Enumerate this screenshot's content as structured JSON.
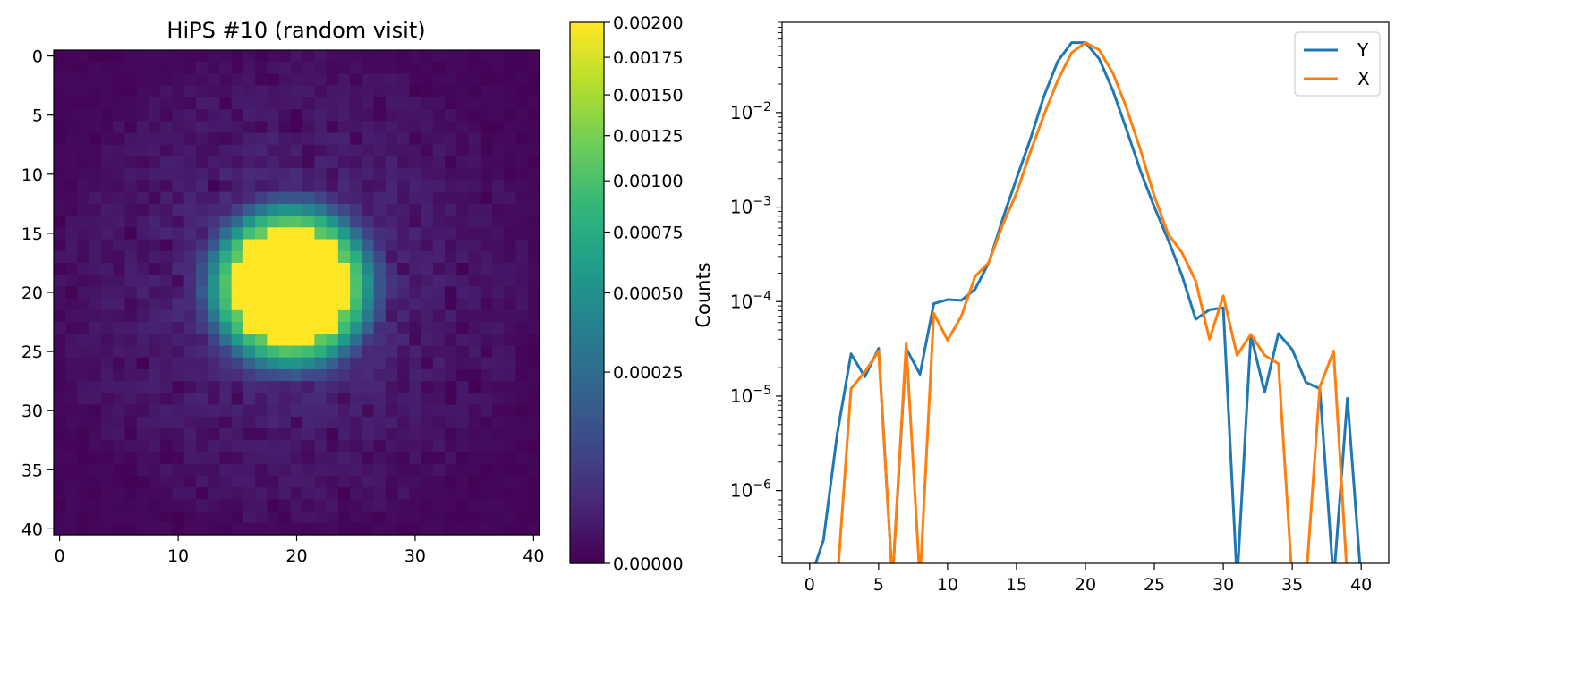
{
  "chart_data": [
    {
      "type": "heatmap",
      "title": "HiPS #10 (random visit)",
      "colormap": "viridis",
      "grid_size": 41,
      "xlim": [
        -0.5,
        40.5
      ],
      "ylim": [
        40.5,
        -0.5
      ],
      "x_ticks": [
        "0",
        "10",
        "20",
        "30",
        "40"
      ],
      "y_ticks": [
        "0",
        "5",
        "10",
        "15",
        "20",
        "25",
        "30",
        "35",
        "40"
      ],
      "center": [
        19.5,
        19.5
      ],
      "core_radius": 5,
      "colorbar": {
        "scale": "sqrt",
        "range": [
          0,
          0.002
        ],
        "ticks": [
          "0.00000",
          "0.00025",
          "0.00050",
          "0.00075",
          "0.00100",
          "0.00125",
          "0.00150",
          "0.00175",
          "0.00200"
        ]
      }
    },
    {
      "type": "line",
      "ylabel": "Counts",
      "yscale": "log",
      "xlim": [
        -2,
        42
      ],
      "ylim": [
        1.7e-07,
        0.09
      ],
      "x_ticks": [
        "0",
        "5",
        "10",
        "15",
        "20",
        "25",
        "30",
        "35",
        "40"
      ],
      "y_ticks": [
        "10^-6",
        "10^-5",
        "10^-4",
        "10^-3",
        "10^-2"
      ],
      "legend": "top-right",
      "x": [
        0,
        1,
        2,
        3,
        4,
        5,
        6,
        7,
        8,
        9,
        10,
        11,
        12,
        13,
        14,
        15,
        16,
        17,
        18,
        19,
        20,
        21,
        22,
        23,
        24,
        25,
        26,
        27,
        28,
        29,
        30,
        31,
        32,
        33,
        34,
        35,
        36,
        37,
        38,
        39,
        40
      ],
      "series": [
        {
          "name": "Y",
          "color": "#1f77b4",
          "values": [
            null,
            3e-07,
            4e-06,
            2.8e-05,
            1.6e-05,
            3.2e-05,
            null,
            3.2e-05,
            1.7e-05,
            9.5e-05,
            0.000105,
            0.000103,
            0.000135,
            0.00026,
            0.00075,
            0.002,
            0.0052,
            0.015,
            0.035,
            0.055,
            0.055,
            0.037,
            0.017,
            0.0065,
            0.0024,
            0.001,
            0.00045,
            0.00019,
            6.5e-05,
            8.2e-05,
            8.6e-05,
            null,
            4.4e-05,
            1.1e-05,
            4.6e-05,
            3.1e-05,
            1.4e-05,
            1.2e-05,
            null,
            9.5e-06,
            null
          ]
        },
        {
          "name": "X",
          "color": "#ff7f0e",
          "values": [
            null,
            null,
            null,
            1.2e-05,
            1.8e-05,
            3e-05,
            null,
            3.6e-05,
            null,
            7.5e-05,
            3.9e-05,
            7e-05,
            0.000185,
            0.00026,
            0.00065,
            0.0014,
            0.0038,
            0.0095,
            0.022,
            0.043,
            0.055,
            0.046,
            0.026,
            0.011,
            0.004,
            0.0013,
            0.00052,
            0.00033,
            0.000165,
            4e-05,
            0.000115,
            2.7e-05,
            4.5e-05,
            2.7e-05,
            2.2e-05,
            null,
            null,
            1.25e-05,
            3e-05,
            null,
            null
          ]
        }
      ]
    }
  ]
}
